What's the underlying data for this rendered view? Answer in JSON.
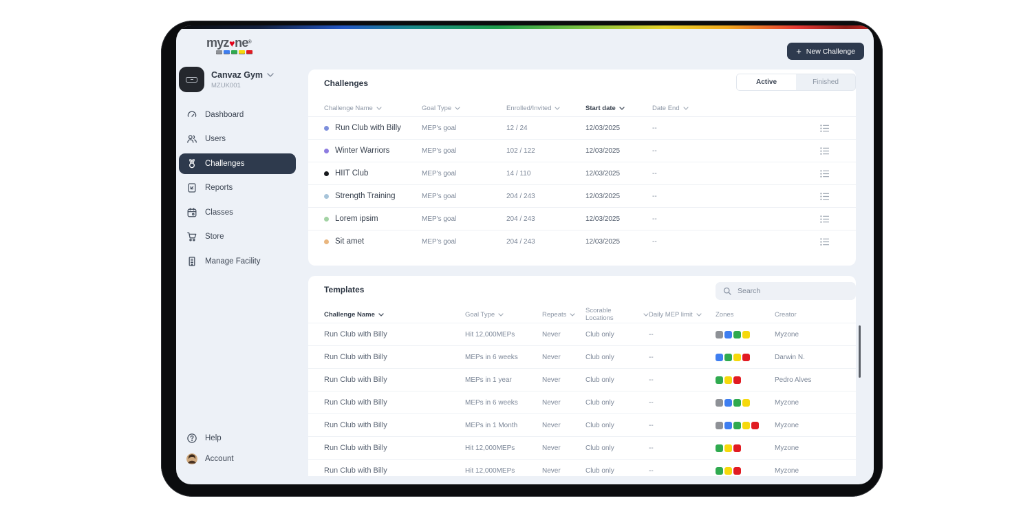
{
  "header": {
    "logo_prefix": "myz",
    "logo_suffix": "ne",
    "reg_mark": "®",
    "plus": "+",
    "new_challenge_label": "New Challenge"
  },
  "facility": {
    "name": "Canvaz Gym",
    "code": "MZUK001"
  },
  "sidebar": {
    "items": [
      {
        "label": "Dashboard",
        "active": false
      },
      {
        "label": "Users",
        "active": false
      },
      {
        "label": "Challenges",
        "active": true
      },
      {
        "label": "Reports",
        "active": false
      },
      {
        "label": "Classes",
        "active": false
      },
      {
        "label": "Store",
        "active": false
      },
      {
        "label": "Manage Facility",
        "active": false
      }
    ],
    "footer_items": [
      {
        "label": "Help"
      },
      {
        "label": "Account"
      }
    ]
  },
  "challenges": {
    "title": "Challenges",
    "tabs": [
      {
        "label": "Active",
        "selected": true
      },
      {
        "label": "Finished",
        "selected": false
      }
    ],
    "columns": [
      "Challenge Name",
      "Goal Type",
      "Enrolled/Invited",
      "Start date",
      "Date End"
    ],
    "rows": [
      {
        "name": "Run Club with Billy",
        "dot_color": "#7d8fdc",
        "goal_type": "MEP's goal",
        "enrolled": "12 / 24",
        "start_date": "12/03/2025",
        "date_end": "--"
      },
      {
        "name": "Winter Warriors",
        "dot_color": "#8d7ce0",
        "goal_type": "MEP's goal",
        "enrolled": "102 / 122",
        "start_date": "12/03/2025",
        "date_end": "--"
      },
      {
        "name": "HIIT Club",
        "dot_color": "#17191d",
        "goal_type": "MEP's goal",
        "enrolled": "14 / 110",
        "start_date": "12/03/2025",
        "date_end": "--"
      },
      {
        "name": "Strength Training",
        "dot_color": "#a7c4d9",
        "goal_type": "MEP's goal",
        "enrolled": "204 / 243",
        "start_date": "12/03/2025",
        "date_end": "--"
      },
      {
        "name": "Lorem ipsim",
        "dot_color": "#a3d3a4",
        "goal_type": "MEP's goal",
        "enrolled": "204 / 243",
        "start_date": "12/03/2025",
        "date_end": "--"
      },
      {
        "name": "Sit amet",
        "dot_color": "#e9b67f",
        "goal_type": "MEP's goal",
        "enrolled": "204 / 243",
        "start_date": "12/03/2025",
        "date_end": "--"
      }
    ]
  },
  "templates": {
    "title": "Templates",
    "search_placeholder": "Search",
    "columns": [
      "Challenge Name",
      "Goal Type",
      "Repeats",
      "Scorable Locations",
      "Daily MEP limit",
      "Zones",
      "Creator"
    ],
    "rows": [
      {
        "name": "Run Club with Billy",
        "goal_type": "Hit 12,000MEPs",
        "repeats": "Never",
        "locations": "Club only",
        "mep_limit": "--",
        "zones": [
          "gray",
          "blue",
          "green",
          "yellow"
        ],
        "creator": "Myzone"
      },
      {
        "name": "Run Club with Billy",
        "goal_type": "MEPs in 6 weeks",
        "repeats": "Never",
        "locations": "Club only",
        "mep_limit": "--",
        "zones": [
          "blue",
          "green",
          "yellow",
          "red"
        ],
        "creator": "Darwin N."
      },
      {
        "name": "Run Club with Billy",
        "goal_type": "MEPs in 1 year",
        "repeats": "Never",
        "locations": "Club only",
        "mep_limit": "--",
        "zones": [
          "green",
          "yellow",
          "red"
        ],
        "creator": "Pedro Alves"
      },
      {
        "name": "Run Club with Billy",
        "goal_type": "MEPs in 6 weeks",
        "repeats": "Never",
        "locations": "Club only",
        "mep_limit": "--",
        "zones": [
          "gray",
          "blue",
          "green",
          "yellow"
        ],
        "creator": "Myzone"
      },
      {
        "name": "Run Club with Billy",
        "goal_type": "MEPs in 1 Month",
        "repeats": "Never",
        "locations": "Club only",
        "mep_limit": "--",
        "zones": [
          "gray",
          "blue",
          "green",
          "yellow",
          "red"
        ],
        "creator": "Myzone"
      },
      {
        "name": "Run Club with Billy",
        "goal_type": "Hit 12,000MEPs",
        "repeats": "Never",
        "locations": "Club only",
        "mep_limit": "--",
        "zones": [
          "green",
          "yellow",
          "red"
        ],
        "creator": "Myzone"
      },
      {
        "name": "Run Club with Billy",
        "goal_type": "Hit 12,000MEPs",
        "repeats": "Never",
        "locations": "Club only",
        "mep_limit": "--",
        "zones": [
          "green",
          "yellow",
          "red"
        ],
        "creator": "Myzone"
      }
    ]
  },
  "zone_colors": {
    "gray": "#8e9196",
    "blue": "#3e7ef0",
    "green": "#2faa4f",
    "yellow": "#f6d90c",
    "red": "#e11b22"
  },
  "brand_colors": {
    "navy": "#2e3a4e",
    "heart_red": "#e2001a"
  }
}
